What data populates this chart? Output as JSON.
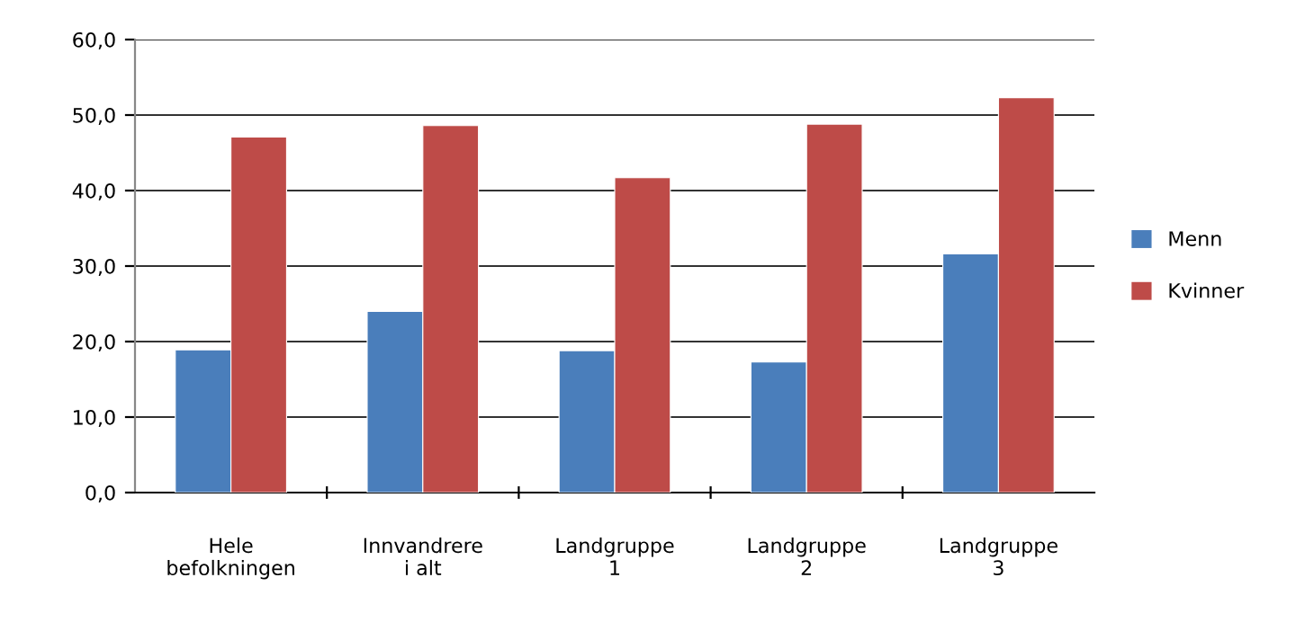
{
  "chart_data": {
    "type": "bar",
    "categories": [
      "Hele\nbefolkningen",
      "Innvandrere\ni alt",
      "Landgruppe\n1",
      "Landgruppe\n2",
      "Landgruppe\n3"
    ],
    "series": [
      {
        "name": "Menn",
        "color": "#4a7ebb",
        "values": [
          18.9,
          24.0,
          18.8,
          17.3,
          31.6
        ]
      },
      {
        "name": "Kvinner",
        "color": "#be4b48",
        "values": [
          47.1,
          48.6,
          41.7,
          48.8,
          52.3
        ]
      }
    ],
    "ylim": [
      0,
      60
    ],
    "yticks": [
      {
        "value": 0,
        "label": "0,0"
      },
      {
        "value": 10,
        "label": "10,0"
      },
      {
        "value": 20,
        "label": "20,0"
      },
      {
        "value": 30,
        "label": "30,0"
      },
      {
        "value": 40,
        "label": "40,0"
      },
      {
        "value": 50,
        "label": "50,0"
      },
      {
        "value": 60,
        "label": "60,0"
      }
    ],
    "grid": "y",
    "legend": "right"
  }
}
